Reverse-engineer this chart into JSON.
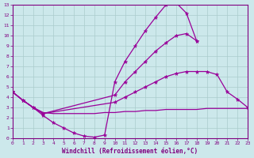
{
  "background_color": "#cce8eb",
  "grid_color": "#aacccc",
  "line_color": "#990099",
  "xlabel": "Windchill (Refroidissement éolien,°C)",
  "xlim": [
    0,
    23
  ],
  "ylim": [
    0,
    13
  ],
  "curveA_x": [
    0,
    1,
    2,
    3,
    4,
    5,
    6,
    7,
    8,
    9,
    10,
    11,
    12,
    13,
    14,
    15,
    16,
    17,
    18
  ],
  "curveA_y": [
    4.5,
    3.7,
    3.0,
    2.2,
    1.5,
    1.0,
    0.5,
    0.2,
    0.1,
    0.3,
    5.5,
    7.5,
    9.0,
    10.5,
    11.8,
    13.0,
    13.2,
    12.2,
    9.5
  ],
  "curveB_x": [
    0,
    1,
    2,
    3,
    10,
    11,
    12,
    13,
    14,
    15,
    16,
    17,
    18
  ],
  "curveB_y": [
    4.5,
    3.7,
    3.0,
    2.4,
    4.2,
    5.5,
    6.5,
    7.5,
    8.5,
    9.3,
    10.0,
    10.2,
    9.5
  ],
  "curveC_x": [
    0,
    1,
    2,
    3,
    10,
    11,
    12,
    13,
    14,
    15,
    16,
    17,
    18,
    19,
    20,
    21,
    22,
    23
  ],
  "curveC_y": [
    4.5,
    3.7,
    3.0,
    2.4,
    3.5,
    4.0,
    4.5,
    5.0,
    5.5,
    6.0,
    6.3,
    6.5,
    6.5,
    6.5,
    6.2,
    4.5,
    3.8,
    3.0
  ],
  "curveD_x": [
    0,
    1,
    2,
    3,
    4,
    5,
    6,
    7,
    8,
    9,
    10,
    11,
    12,
    13,
    14,
    15,
    16,
    17,
    18,
    19,
    20,
    21,
    22,
    23
  ],
  "curveD_y": [
    4.5,
    3.7,
    3.0,
    2.5,
    2.4,
    2.4,
    2.4,
    2.4,
    2.4,
    2.5,
    2.5,
    2.6,
    2.6,
    2.7,
    2.7,
    2.8,
    2.8,
    2.8,
    2.8,
    2.9,
    2.9,
    2.9,
    2.9,
    2.9
  ]
}
